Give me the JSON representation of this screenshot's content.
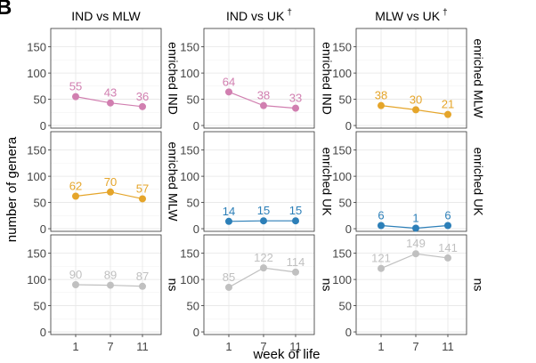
{
  "figure": {
    "panel_letter": "B",
    "ylabel": "number of genera",
    "xlabel": "week of life",
    "dagger": "†"
  },
  "chart_data": {
    "type": "line",
    "x": [
      1,
      7,
      11
    ],
    "x_tick_labels": [
      "1",
      "7",
      "11"
    ],
    "ylim": [
      -5,
      185
    ],
    "y_ticks": [
      0,
      50,
      100,
      150
    ],
    "grid": true,
    "columns": [
      {
        "title": "IND vs MLW",
        "dagger": false
      },
      {
        "title": "IND vs UK",
        "dagger": true
      },
      {
        "title": "MLW vs UK",
        "dagger": true
      }
    ],
    "row_labels": [
      [
        "enriched IND",
        "enriched IND",
        "enriched MLW"
      ],
      [
        "enriched MLW",
        "enriched UK",
        "enriched UK"
      ],
      [
        "ns",
        "ns",
        "ns"
      ]
    ],
    "colors": {
      "IND": "#d17fb0",
      "MLW": "#e5a52a",
      "UK": "#2c7fb8",
      "ns": "#c0c0c0"
    },
    "panels": [
      {
        "row": 0,
        "col": 0,
        "group": "IND",
        "values": [
          55,
          43,
          36
        ]
      },
      {
        "row": 0,
        "col": 1,
        "group": "IND",
        "values": [
          64,
          38,
          33
        ]
      },
      {
        "row": 0,
        "col": 2,
        "group": "MLW",
        "values": [
          38,
          30,
          21
        ]
      },
      {
        "row": 1,
        "col": 0,
        "group": "MLW",
        "values": [
          62,
          70,
          57
        ]
      },
      {
        "row": 1,
        "col": 1,
        "group": "UK",
        "values": [
          14,
          15,
          15
        ]
      },
      {
        "row": 1,
        "col": 2,
        "group": "UK",
        "values": [
          6,
          1,
          6
        ]
      },
      {
        "row": 2,
        "col": 0,
        "group": "ns",
        "values": [
          90,
          89,
          87
        ]
      },
      {
        "row": 2,
        "col": 1,
        "group": "ns",
        "values": [
          85,
          122,
          114
        ]
      },
      {
        "row": 2,
        "col": 2,
        "group": "ns",
        "values": [
          121,
          149,
          141
        ]
      }
    ]
  }
}
